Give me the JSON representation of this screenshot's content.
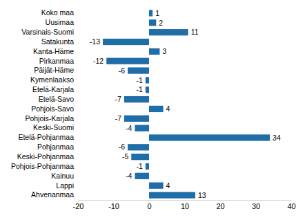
{
  "chart_data": {
    "type": "bar",
    "orientation": "horizontal",
    "data_labels": true,
    "grid": false,
    "color": "#1f6ea8",
    "categories": [
      "Koko maa",
      "Uusimaa",
      "Varsinais-Suomi",
      "Satakunta",
      "Kanta-Häme",
      "Pirkanmaa",
      "Päijät-Häme",
      "Kymenlaakso",
      "Etelä-Karjala",
      "Etelä-Savo",
      "Pohjois-Savo",
      "Pohjois-Karjala",
      "Keski-Suomi",
      "Etelä-Pohjanmaa",
      "Pohjanmaa",
      "Keski-Pohjanmaa",
      "Pohjois-Pohjanmaa",
      "Kainuu",
      "Lappi",
      "Ahvenanmaa"
    ],
    "values": [
      1,
      2,
      11,
      -13,
      3,
      -12,
      -6,
      -1,
      -1,
      -7,
      4,
      -7,
      -4,
      34,
      -6,
      -5,
      -1,
      -4,
      4,
      13
    ],
    "xlim": [
      -20,
      40
    ],
    "xticks": [
      -20,
      -10,
      0,
      10,
      20,
      30,
      40
    ]
  }
}
